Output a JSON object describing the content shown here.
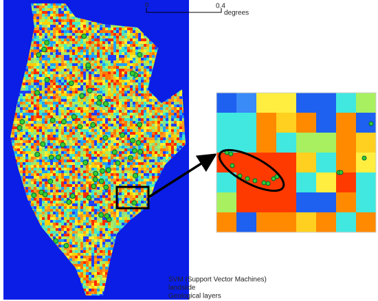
{
  "scale_bar": {
    "start": "0",
    "end": "0.4",
    "unit": "degrees"
  },
  "legend": {
    "items": [
      "SVM (Support Vector Machines)",
      "landslide",
      "Geological layers"
    ]
  }
}
